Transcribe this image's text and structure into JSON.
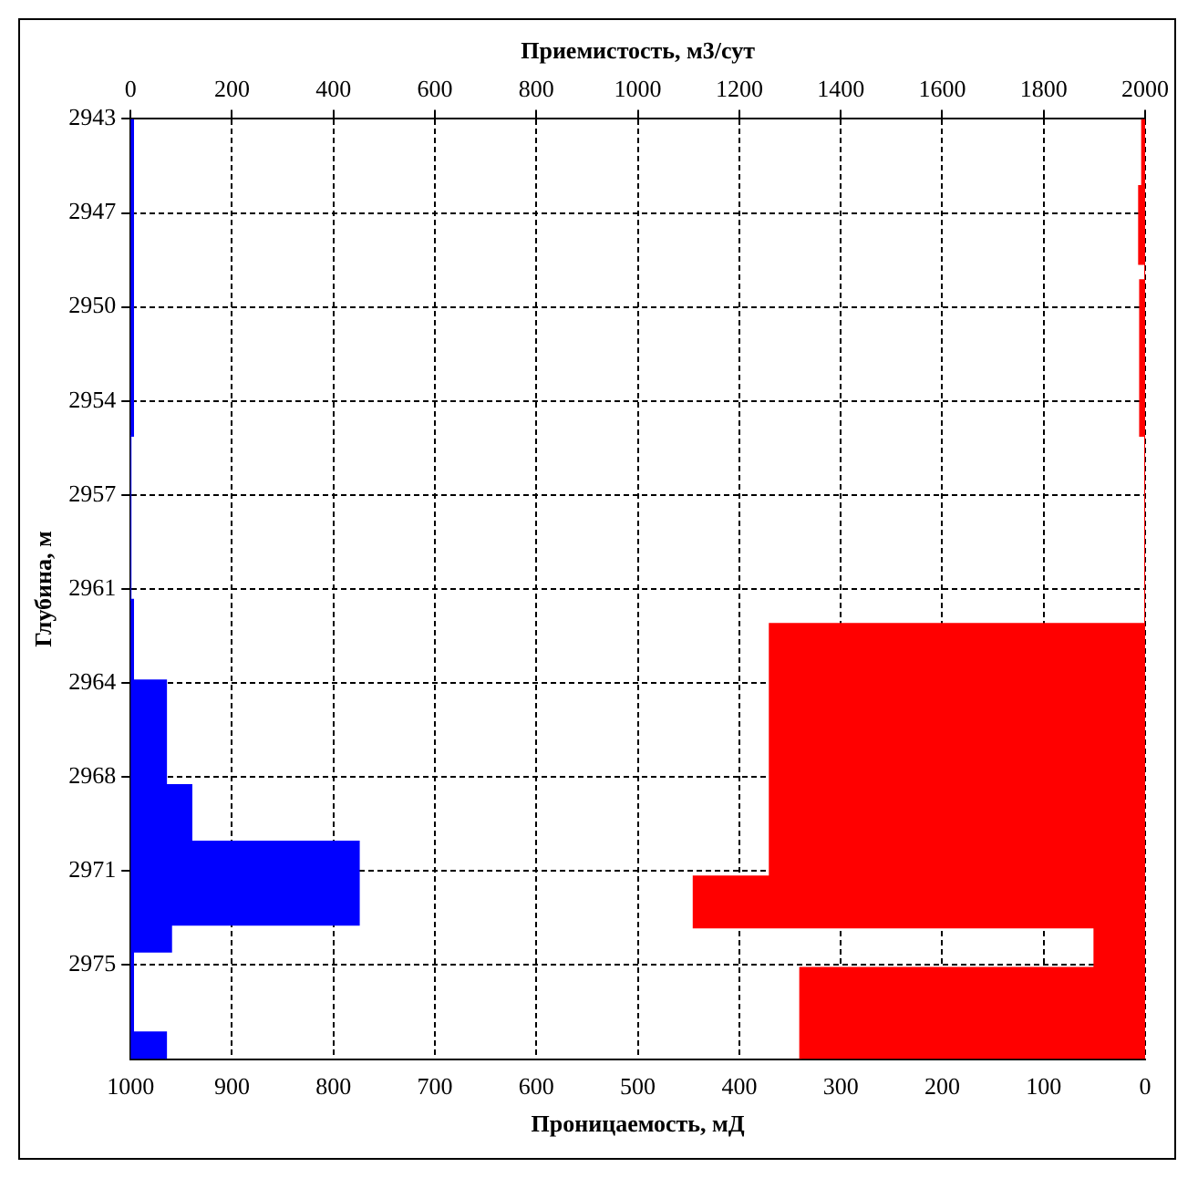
{
  "chart_data": {
    "type": "area",
    "orientation": "horizontal",
    "xlabel": "Проницаемость, мД",
    "x2label": "Приемистость, м3/сут",
    "ylabel": "Глубина, м",
    "xlim": [
      1000,
      0
    ],
    "xticks": [
      1000,
      900,
      800,
      700,
      600,
      500,
      400,
      300,
      200,
      100,
      0
    ],
    "x2lim": [
      0,
      2000
    ],
    "x2ticks": [
      0,
      200,
      400,
      600,
      800,
      1000,
      1200,
      1400,
      1600,
      1800,
      2000
    ],
    "ylim": [
      2978,
      2943
    ],
    "yticks": [
      2943,
      {
        "value": 2946.5,
        "label": "2947"
      },
      2950,
      {
        "value": 2953.5,
        "label": "2954"
      },
      2957,
      {
        "value": 2960.5,
        "label": "2961"
      },
      2964,
      {
        "value": 2967.5,
        "label": "2968"
      },
      2971,
      {
        "value": 2974.5,
        "label": "2975"
      }
    ],
    "grid": true,
    "legend": false,
    "series": [
      {
        "color": "#0000ff",
        "axis": "x2",
        "x": [
          2943,
          2954.8,
          2954.8,
          2960.9,
          2960.9,
          2963.9,
          2963.9,
          2967.8,
          2967.8,
          2969.9,
          2969.9,
          2973,
          2973,
          2974,
          2974,
          2977,
          2977,
          2978
        ],
        "values": [
          5,
          5,
          0,
          0,
          5,
          5,
          70,
          70,
          120,
          120,
          450,
          450,
          80,
          80,
          5,
          5,
          70,
          70
        ]
      },
      {
        "color": "#ff0000",
        "x": [
          2943,
          2945.5,
          2945.5,
          2948.4,
          2948.4,
          2949,
          2949,
          2954.8,
          2954.8,
          2961.8,
          2961.8,
          2971.2,
          2971.2,
          2973.1,
          2973.1,
          2974.6,
          2974.6,
          2978
        ],
        "values": [
          3,
          3,
          6,
          6,
          0,
          0,
          5,
          5,
          0,
          0,
          370,
          370,
          445,
          445,
          50,
          50,
          340,
          340
        ]
      }
    ]
  }
}
